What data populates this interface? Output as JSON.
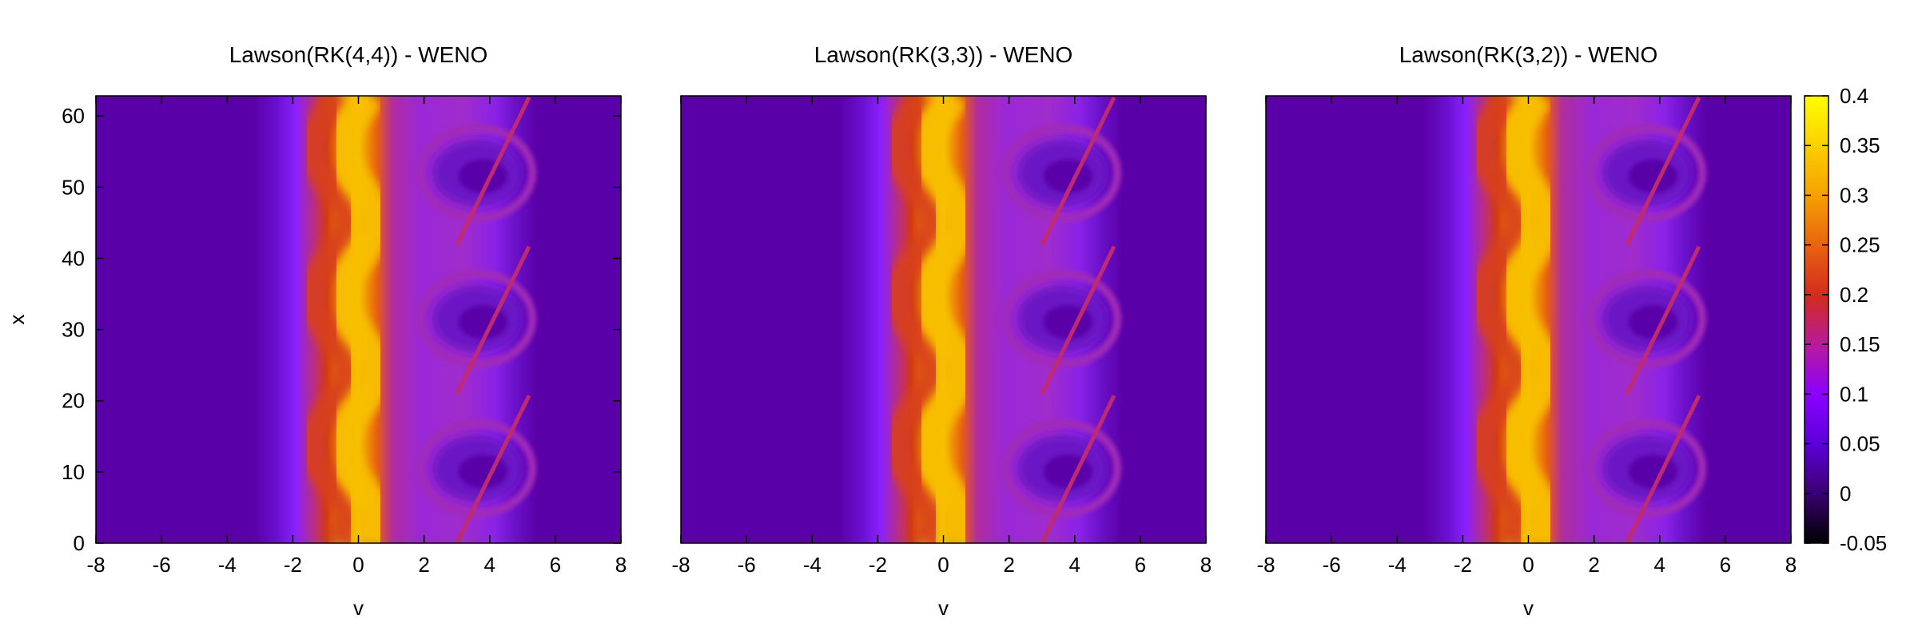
{
  "chart_data": [
    {
      "type": "heatmap",
      "title": "Lawson(RK(4,4)) - WENO",
      "xlabel": "v",
      "ylabel": "x",
      "xlim": [
        -8,
        8
      ],
      "ylim": [
        0,
        62.83
      ],
      "xticks": [
        "-8",
        "-6",
        "-4",
        "-2",
        "0",
        "2",
        "4",
        "6",
        "8"
      ],
      "yticks": [
        "0",
        "10",
        "20",
        "30",
        "40",
        "50",
        "60"
      ]
    },
    {
      "type": "heatmap",
      "title": "Lawson(RK(3,3)) - WENO",
      "xlabel": "v",
      "ylabel": "",
      "xlim": [
        -8,
        8
      ],
      "ylim": [
        0,
        62.83
      ],
      "xticks": [
        "-8",
        "-6",
        "-4",
        "-2",
        "0",
        "2",
        "4",
        "6",
        "8"
      ],
      "yticks": []
    },
    {
      "type": "heatmap",
      "title": "Lawson(RK(3,2)) - WENO",
      "xlabel": "v",
      "ylabel": "",
      "xlim": [
        -8,
        8
      ],
      "ylim": [
        0,
        62.83
      ],
      "xticks": [
        "-8",
        "-6",
        "-4",
        "-2",
        "0",
        "2",
        "4",
        "6",
        "8"
      ],
      "yticks": []
    }
  ],
  "colorbar": {
    "range": [
      -0.05,
      0.4
    ],
    "ticks": [
      "0.4",
      "0.35",
      "0.3",
      "0.25",
      "0.2",
      "0.15",
      "0.1",
      "0.05",
      "0",
      "-0.05"
    ],
    "colormap": [
      "#000000",
      "#3a0070",
      "#5b00d8",
      "#8a00ff",
      "#b61aa0",
      "#d22a20",
      "#e86010",
      "#f6a200",
      "#fbd000",
      "#ffff00"
    ]
  }
}
